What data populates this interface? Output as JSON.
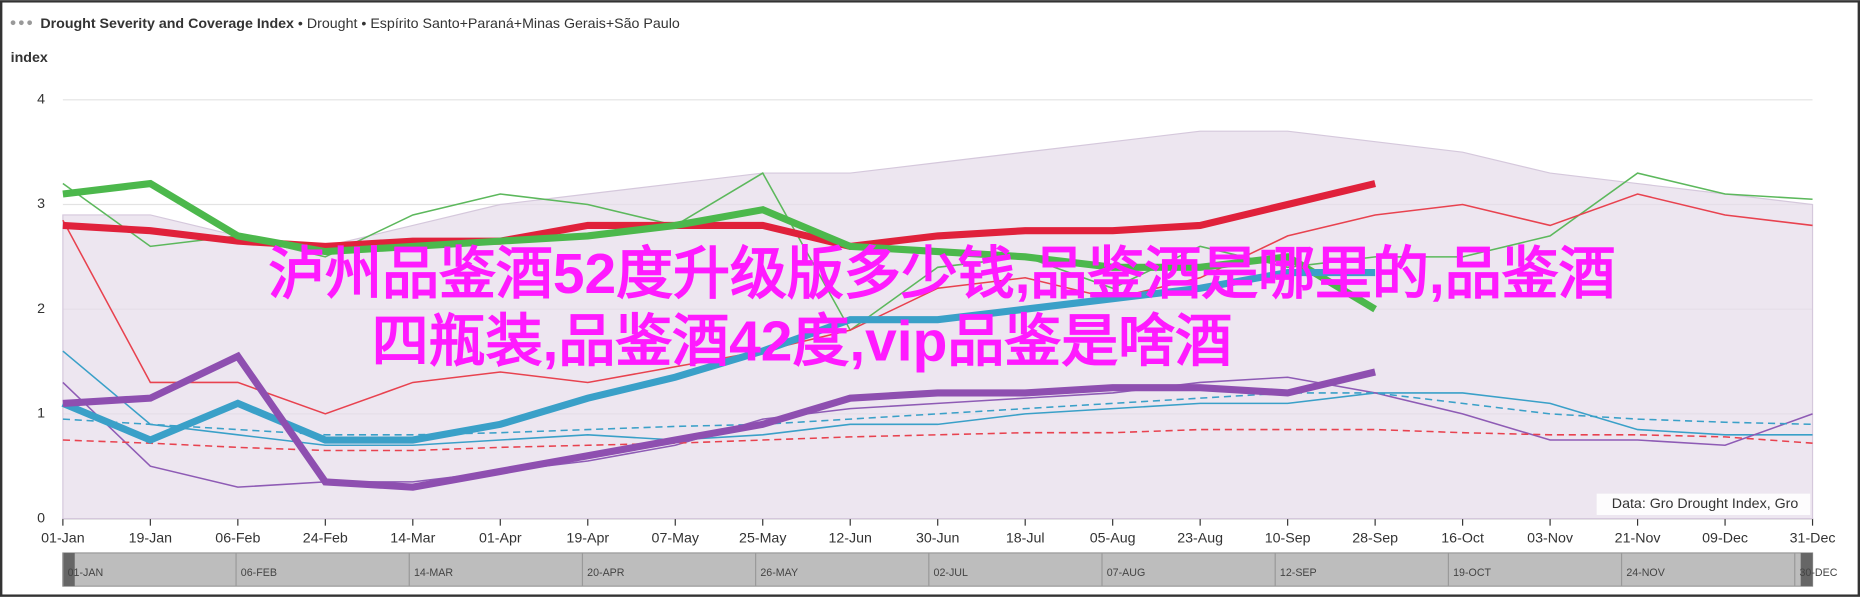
{
  "chart_data": {
    "type": "line",
    "title": "Drought Severity and Coverage Index",
    "subtitle": "• Drought • Espírito Santo+Paraná+Minas Gerais+São Paulo",
    "y_label": "index",
    "source": "Data: Gro Drought Index, Gro",
    "annotations": [
      "泸州品鉴酒52度升级版多少钱,品鉴酒是哪里的,品鉴酒",
      "四瓶装,品鉴酒42度,vip品鉴是啥酒"
    ],
    "categories": [
      "01-Jan",
      "19-Jan",
      "06-Feb",
      "24-Feb",
      "14-Mar",
      "01-Apr",
      "19-Apr",
      "07-May",
      "25-May",
      "12-Jun",
      "30-Jun",
      "18-Jul",
      "05-Aug",
      "23-Aug",
      "10-Sep",
      "28-Sep",
      "16-Oct",
      "03-Nov",
      "21-Nov",
      "09-Dec",
      "31-Dec"
    ],
    "navigator_labels": [
      "01-JAN",
      "06-FEB",
      "14-MAR",
      "20-APR",
      "26-MAY",
      "02-JUL",
      "07-AUG",
      "12-SEP",
      "19-OCT",
      "24-NOV",
      "30-DEC"
    ],
    "ylim": [
      0,
      4
    ],
    "yticks": [
      0,
      1,
      2,
      3,
      4
    ],
    "grid": true,
    "series": [
      {
        "style": "area",
        "color": "#e6dcea",
        "values": [
          2.9,
          2.9,
          2.7,
          2.6,
          2.8,
          3.0,
          3.1,
          3.2,
          3.3,
          3.3,
          3.4,
          3.5,
          3.6,
          3.7,
          3.7,
          3.6,
          3.5,
          3.3,
          3.2,
          3.1,
          3.0
        ]
      },
      {
        "style": "thin",
        "color": "#5cb85c",
        "values": [
          3.2,
          2.6,
          2.7,
          2.5,
          2.9,
          3.1,
          3.0,
          2.8,
          3.3,
          1.8,
          2.4,
          2.5,
          2.2,
          2.6,
          2.4,
          2.5,
          2.5,
          2.7,
          3.3,
          3.1,
          3.05
        ]
      },
      {
        "style": "thin",
        "color": "#e8424f",
        "values": [
          2.85,
          1.3,
          1.3,
          1.0,
          1.3,
          1.4,
          1.3,
          1.45,
          1.6,
          1.8,
          2.2,
          2.3,
          2.1,
          2.3,
          2.7,
          2.9,
          3.0,
          2.8,
          3.1,
          2.9,
          2.8
        ]
      },
      {
        "style": "thin",
        "color": "#3aa0c8",
        "values": [
          1.6,
          0.9,
          0.8,
          0.7,
          0.7,
          0.75,
          0.8,
          0.75,
          0.8,
          0.9,
          0.9,
          1.0,
          1.05,
          1.1,
          1.1,
          1.2,
          1.2,
          1.1,
          0.85,
          0.8,
          0.8
        ]
      },
      {
        "style": "thin",
        "color": "#8e5bb5",
        "values": [
          1.3,
          0.5,
          0.3,
          0.35,
          0.35,
          0.45,
          0.55,
          0.7,
          0.95,
          1.05,
          1.1,
          1.15,
          1.2,
          1.3,
          1.35,
          1.2,
          1.0,
          0.75,
          0.75,
          0.7,
          1.0
        ]
      },
      {
        "style": "dashed",
        "color": "#e8424f",
        "values": [
          0.75,
          0.72,
          0.68,
          0.65,
          0.65,
          0.68,
          0.7,
          0.72,
          0.75,
          0.78,
          0.8,
          0.82,
          0.82,
          0.85,
          0.85,
          0.85,
          0.82,
          0.8,
          0.8,
          0.78,
          0.72
        ]
      },
      {
        "style": "dashed",
        "color": "#3aa0c8",
        "values": [
          0.95,
          0.9,
          0.85,
          0.8,
          0.8,
          0.82,
          0.85,
          0.88,
          0.9,
          0.95,
          1.0,
          1.05,
          1.1,
          1.15,
          1.2,
          1.2,
          1.1,
          1.0,
          0.95,
          0.92,
          0.9
        ]
      },
      {
        "style": "bold",
        "color": "#e0213b",
        "values": [
          2.8,
          2.75,
          2.65,
          2.6,
          2.65,
          2.65,
          2.8,
          2.8,
          2.8,
          2.6,
          2.7,
          2.75,
          2.75,
          2.8,
          3.0,
          3.2,
          null,
          null,
          null,
          null,
          null
        ]
      },
      {
        "style": "bold",
        "color": "#4cb84c",
        "values": [
          3.1,
          3.2,
          2.7,
          2.55,
          2.6,
          2.65,
          2.7,
          2.8,
          2.95,
          2.6,
          2.55,
          2.5,
          2.4,
          2.4,
          2.5,
          2.0,
          null,
          null,
          null,
          null,
          null
        ]
      },
      {
        "style": "bold",
        "color": "#3aa0c8",
        "values": [
          1.1,
          0.75,
          1.1,
          0.75,
          0.75,
          0.9,
          1.15,
          1.35,
          1.6,
          1.9,
          1.9,
          2.0,
          2.1,
          2.2,
          2.35,
          2.35,
          null,
          null,
          null,
          null,
          null
        ]
      },
      {
        "style": "bold",
        "color": "#8e4fb0",
        "values": [
          1.1,
          1.15,
          1.55,
          0.35,
          0.3,
          0.45,
          0.6,
          0.75,
          0.9,
          1.15,
          1.2,
          1.2,
          1.25,
          1.25,
          1.2,
          1.4,
          null,
          null,
          null,
          null,
          null
        ]
      }
    ]
  }
}
